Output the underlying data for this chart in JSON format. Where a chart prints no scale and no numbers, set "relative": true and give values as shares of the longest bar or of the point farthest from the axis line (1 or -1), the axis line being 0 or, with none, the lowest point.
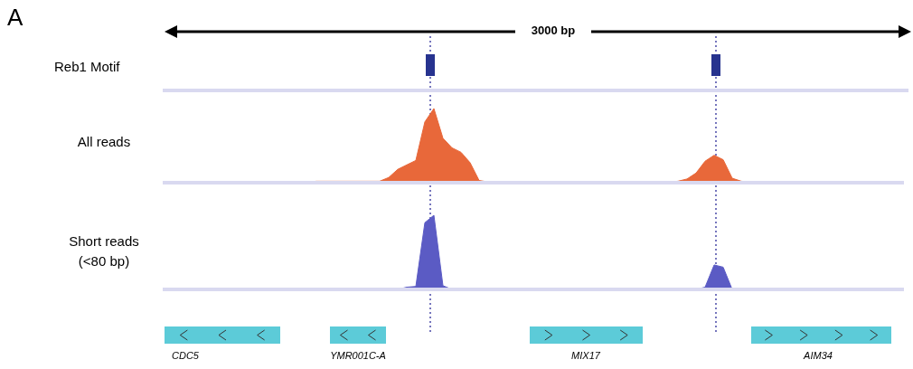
{
  "chart_data": [
    {
      "type": "other",
      "title": "A",
      "annotations": [
        "3000 bp"
      ]
    },
    {
      "type": "other",
      "annotations": [
        "Reb1 Motif"
      ]
    },
    {
      "type": "area",
      "ylabel": "All reads",
      "relative": true,
      "categories": [
        null,
        null,
        null,
        null,
        null,
        null,
        null,
        null,
        null,
        null,
        null,
        null,
        null,
        null,
        null,
        null,
        null,
        null,
        null,
        null,
        null,
        null,
        null,
        null,
        null,
        null,
        null,
        null,
        null,
        null,
        null,
        null,
        null,
        null,
        null,
        null,
        null,
        null,
        null,
        null,
        null,
        null,
        null,
        null,
        null,
        null,
        null,
        null,
        null,
        null,
        null,
        null,
        null,
        null,
        null,
        null,
        null,
        null,
        null,
        null,
        null,
        null,
        null,
        null,
        null,
        null,
        null,
        null,
        null,
        null,
        null,
        null,
        null,
        null,
        null,
        null,
        null,
        null,
        null,
        null,
        null,
        null,
        null
      ],
      "series": [
        {
          "color": "#e8683a",
          "values": [
            0,
            0,
            0,
            0,
            0,
            0,
            0,
            0,
            0,
            0,
            0,
            0,
            0,
            0,
            0,
            0,
            0.01,
            0.02,
            0.02,
            0.02,
            0.02,
            0.02,
            0.02,
            0.02,
            0.02,
            0.07,
            0.18,
            0.24,
            0.3,
            0.82,
            1,
            0.6,
            0.47,
            0.41,
            0.27,
            0.03,
            0.01,
            0.01,
            0.01,
            0.01,
            0,
            0,
            0,
            0,
            0,
            0,
            0,
            0,
            0,
            0,
            0,
            0,
            0,
            0,
            0.01,
            0.01,
            0.01,
            0.02,
            0.05,
            0.13,
            0.29,
            0.37,
            0.31,
            0.06,
            0.02,
            0.01,
            0.01,
            0.01,
            0.01,
            0.01,
            0.01,
            0.01,
            0,
            0,
            0,
            0,
            0.01,
            0.01,
            0.01,
            0.01,
            0.01,
            0.01,
            0.01
          ]
        }
      ]
    },
    {
      "type": "area",
      "ylabel": "Short reads\n(<80 bp)",
      "relative": true,
      "categories": [
        null,
        null,
        null,
        null,
        null,
        null,
        null,
        null,
        null,
        null,
        null,
        null,
        null,
        null,
        null,
        null,
        null,
        null,
        null,
        null,
        null,
        null,
        null,
        null,
        null,
        null,
        null,
        null,
        null,
        null,
        null,
        null,
        null,
        null,
        null,
        null,
        null,
        null,
        null,
        null,
        null,
        null,
        null,
        null,
        null,
        null,
        null,
        null,
        null,
        null,
        null,
        null,
        null,
        null,
        null,
        null,
        null,
        null,
        null,
        null,
        null,
        null,
        null,
        null,
        null,
        null,
        null,
        null,
        null,
        null,
        null,
        null,
        null,
        null,
        null,
        null,
        null,
        null,
        null,
        null,
        null,
        null,
        null
      ],
      "series": [
        {
          "color": "#5b5bc4",
          "values": [
            0,
            0,
            0,
            0,
            0,
            0,
            0,
            0,
            0,
            0,
            0,
            0,
            0,
            0,
            0,
            0,
            0,
            0,
            0,
            0,
            0,
            0,
            0,
            0,
            0,
            0,
            0,
            0.03,
            0.04,
            0.9,
            1,
            0.05,
            0,
            0,
            0,
            0,
            0,
            0,
            0,
            0,
            0,
            0,
            0,
            0,
            0,
            0,
            0,
            0,
            0,
            0,
            0,
            0,
            0,
            0,
            0,
            0,
            0,
            0,
            0,
            0,
            0.03,
            0.33,
            0.3,
            0,
            0,
            0,
            0,
            0,
            0,
            0,
            0,
            0,
            0,
            0,
            0,
            0,
            0,
            0,
            0,
            0,
            0,
            0,
            0
          ]
        }
      ]
    },
    {
      "type": "other",
      "annotations": [
        "CDC5",
        "YMR001C-A",
        "MIX17",
        "AIM34"
      ]
    }
  ]
}
